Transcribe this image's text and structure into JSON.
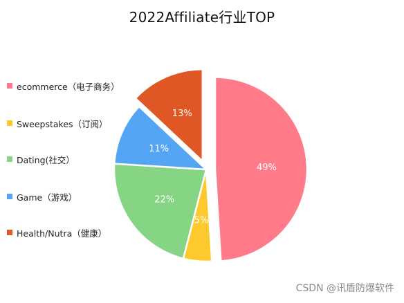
{
  "chart_data": {
    "type": "pie",
    "title": "2022Affiliate行业TOP",
    "categories": [
      "ecommerce（电子商务）",
      "Sweepstakes（订阅）",
      "Dating(社交）",
      "Game（游戏）",
      "Health/Nutra（健康）"
    ],
    "values": [
      49,
      5,
      22,
      11,
      13
    ],
    "value_labels": [
      "49%",
      "5%",
      "22%",
      "11%",
      "13%"
    ],
    "colors": [
      "#ff7b8a",
      "#fdc92c",
      "#85d584",
      "#54a5f3",
      "#df5724"
    ],
    "exploded": [
      true,
      false,
      false,
      false,
      true
    ],
    "legend_position": "left"
  },
  "watermark": "CSDN @讯盾防爆软件"
}
